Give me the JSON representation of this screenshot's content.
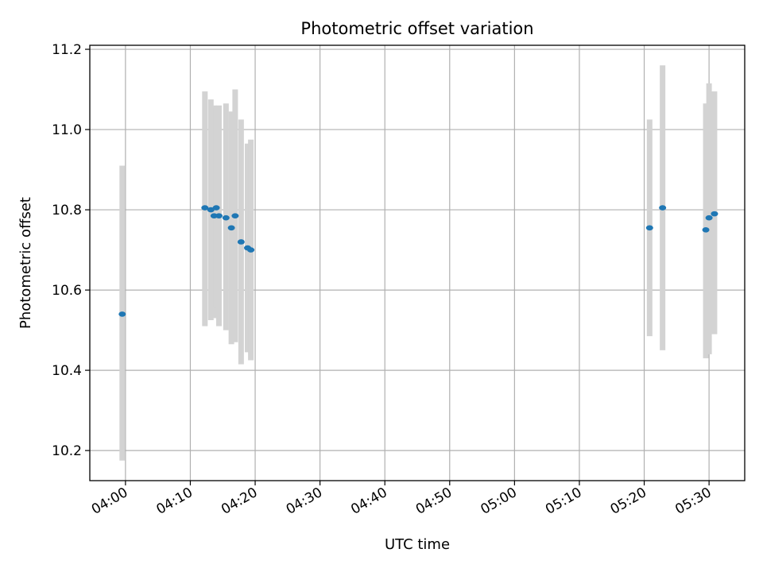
{
  "chart_data": {
    "type": "scatter",
    "title": "Photometric offset variation",
    "xlabel": "UTC time",
    "ylabel": "Photometric offset",
    "x_axis_type": "time",
    "xlim": [
      "03:54:30",
      "05:35:30"
    ],
    "ylim": [
      10.125,
      11.21
    ],
    "xticks": [
      "04:00",
      "04:10",
      "04:20",
      "04:30",
      "04:40",
      "04:50",
      "05:00",
      "05:10",
      "05:20",
      "05:30"
    ],
    "yticks": [
      "10.2",
      "10.4",
      "10.6",
      "10.8",
      "11.0",
      "11.2"
    ],
    "grid": true,
    "point_color": "#1f77b4",
    "errorbar_color": "#d3d3d3",
    "series": [
      {
        "points": [
          {
            "t": "03:59:30",
            "y": 10.54,
            "low": 10.175,
            "high": 10.91
          },
          {
            "t": "04:12:15",
            "y": 10.805,
            "low": 10.51,
            "high": 11.095
          },
          {
            "t": "04:13:10",
            "y": 10.8,
            "low": 10.525,
            "high": 11.075
          },
          {
            "t": "04:13:40",
            "y": 10.785,
            "low": 10.53,
            "high": 11.06
          },
          {
            "t": "04:14:00",
            "y": 10.805,
            "low": 10.555,
            "high": 11.055
          },
          {
            "t": "04:14:25",
            "y": 10.785,
            "low": 10.51,
            "high": 11.06
          },
          {
            "t": "04:15:30",
            "y": 10.78,
            "low": 10.5,
            "high": 11.065
          },
          {
            "t": "04:16:20",
            "y": 10.755,
            "low": 10.465,
            "high": 11.045
          },
          {
            "t": "04:16:55",
            "y": 10.785,
            "low": 10.47,
            "high": 11.1
          },
          {
            "t": "04:17:50",
            "y": 10.72,
            "low": 10.415,
            "high": 11.025
          },
          {
            "t": "04:18:50",
            "y": 10.705,
            "low": 10.445,
            "high": 10.965
          },
          {
            "t": "04:19:20",
            "y": 10.7,
            "low": 10.425,
            "high": 10.975
          },
          {
            "t": "05:20:50",
            "y": 10.755,
            "low": 10.485,
            "high": 11.025
          },
          {
            "t": "05:22:50",
            "y": 10.805,
            "low": 10.45,
            "high": 11.16
          },
          {
            "t": "05:29:30",
            "y": 10.75,
            "low": 10.43,
            "high": 11.065
          },
          {
            "t": "05:30:00",
            "y": 10.78,
            "low": 10.44,
            "high": 11.115
          },
          {
            "t": "05:30:50",
            "y": 10.79,
            "low": 10.49,
            "high": 11.095
          }
        ]
      }
    ]
  }
}
